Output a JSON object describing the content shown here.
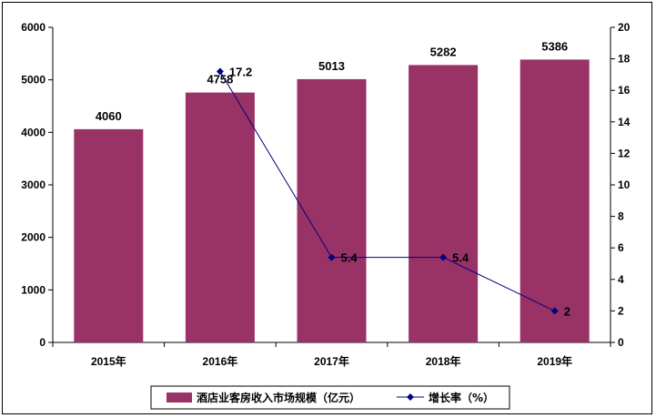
{
  "chart_data": {
    "type": "bar",
    "categories": [
      "2015年",
      "2016年",
      "2017年",
      "2018年",
      "2019年"
    ],
    "series": [
      {
        "name": "酒店业客房收入市场规模（亿元）",
        "type": "bar",
        "axis": "left",
        "color": "#993366",
        "values": [
          4060,
          4758,
          5013,
          5282,
          5386
        ]
      },
      {
        "name": "增长率（%）",
        "type": "line",
        "axis": "right",
        "color": "#000080",
        "values": [
          null,
          17.2,
          5.4,
          5.4,
          2
        ]
      }
    ],
    "bar_labels": [
      "4060",
      "4758",
      "5013",
      "5282",
      "5386"
    ],
    "line_labels": [
      "",
      "17.2",
      "5.4",
      "5.4",
      "2"
    ],
    "y_left": {
      "min": 0,
      "max": 6000,
      "ticks": [
        "0",
        "1000",
        "2000",
        "3000",
        "4000",
        "5000",
        "6000"
      ]
    },
    "y_right": {
      "min": 0,
      "max": 20,
      "ticks": [
        "0",
        "2",
        "4",
        "6",
        "8",
        "10",
        "12",
        "14",
        "16",
        "18",
        "20"
      ]
    },
    "grid": false,
    "legend_position": "bottom"
  }
}
